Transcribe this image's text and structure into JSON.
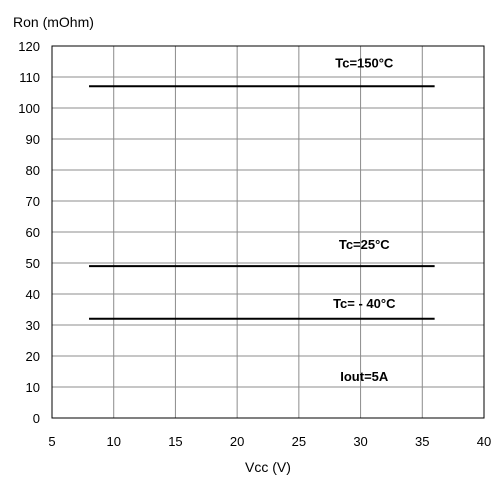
{
  "chart_data": {
    "type": "line",
    "xlabel": "Vcc (V)",
    "ylabel": "Ron (mOhm)",
    "xlim": [
      5,
      40
    ],
    "ylim": [
      0,
      120
    ],
    "xticks": [
      5,
      10,
      15,
      20,
      25,
      30,
      35,
      40
    ],
    "yticks": [
      0,
      10,
      20,
      30,
      40,
      50,
      60,
      70,
      80,
      90,
      100,
      110,
      120
    ],
    "grid": true,
    "series": [
      {
        "name": "Tc=150°C",
        "x": [
          8,
          36
        ],
        "y": [
          107,
          107
        ]
      },
      {
        "name": "Tc=25°C",
        "x": [
          8,
          36
        ],
        "y": [
          49,
          49
        ]
      },
      {
        "name": "Tc= - 40°C",
        "x": [
          8,
          36
        ],
        "y": [
          32,
          32
        ]
      }
    ],
    "annotations": [
      {
        "text": "Tc=150°C",
        "x": 30.3,
        "y": 113
      },
      {
        "text": "Tc=25°C",
        "x": 30.3,
        "y": 54.5
      },
      {
        "text": "Tc= - 40°C",
        "x": 30.3,
        "y": 35.5
      },
      {
        "text": "Iout=5A",
        "x": 30.3,
        "y": 12
      }
    ]
  }
}
